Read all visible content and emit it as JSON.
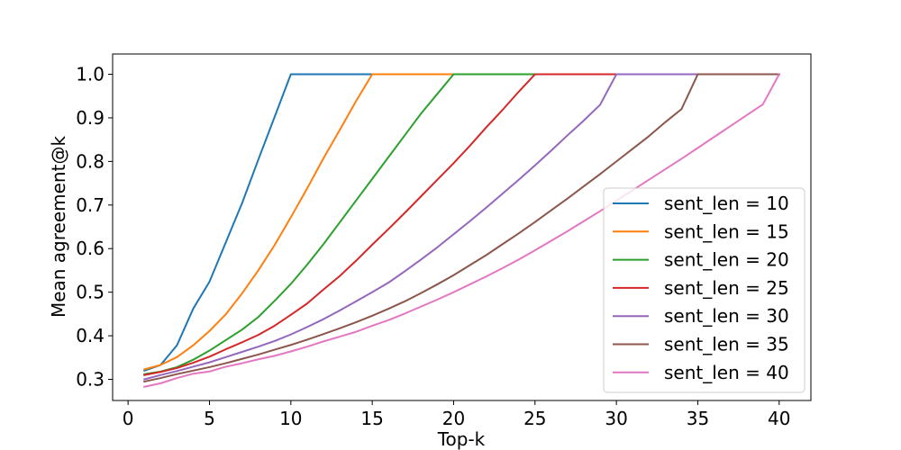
{
  "chart_data": {
    "type": "line",
    "title": "",
    "xlabel": "Top-k",
    "ylabel": "Mean agreement@k",
    "xlim": [
      -0.95,
      41.95
    ],
    "ylim": [
      0.2515,
      1.0465
    ],
    "xticks": [
      0,
      5,
      10,
      15,
      20,
      25,
      30,
      35,
      40
    ],
    "yticks": [
      0.3,
      0.4,
      0.5,
      0.6,
      0.7,
      0.8,
      0.9,
      1.0
    ],
    "xtick_labels": [
      "0",
      "5",
      "10",
      "15",
      "20",
      "25",
      "30",
      "35",
      "40"
    ],
    "ytick_labels": [
      "0.3",
      "0.4",
      "0.5",
      "0.6",
      "0.7",
      "0.8",
      "0.9",
      "1.0"
    ],
    "grid": false,
    "legend_position": "lower-right",
    "series": [
      {
        "name": "sent_len = 10",
        "color": "#1f77b4",
        "x": [
          1,
          2,
          3,
          4,
          5,
          6,
          7,
          8,
          9,
          10,
          11,
          12,
          13,
          14,
          15,
          16,
          17,
          18,
          19,
          20,
          21,
          22,
          23,
          24,
          25,
          26,
          27,
          28,
          29,
          30,
          31,
          32,
          33,
          34,
          35,
          36,
          37,
          38,
          39,
          40
        ],
        "y": [
          0.32,
          0.333,
          0.378,
          0.462,
          0.524,
          0.614,
          0.704,
          0.804,
          0.902,
          1.0,
          1.0,
          1.0,
          1.0,
          1.0,
          1.0,
          1.0,
          1.0,
          1.0,
          1.0,
          1.0,
          1.0,
          1.0,
          1.0,
          1.0,
          1.0,
          1.0,
          1.0,
          1.0,
          1.0,
          1.0,
          1.0,
          1.0,
          1.0,
          1.0,
          1.0,
          1.0,
          1.0,
          1.0,
          1.0,
          1.0
        ]
      },
      {
        "name": "sent_len = 15",
        "color": "#ff7f0e",
        "x": [
          1,
          2,
          3,
          4,
          5,
          6,
          7,
          8,
          9,
          10,
          11,
          12,
          13,
          14,
          15,
          16,
          17,
          18,
          19,
          20,
          21,
          22,
          23,
          24,
          25,
          26,
          27,
          28,
          29,
          30,
          31,
          32,
          33,
          34,
          35,
          36,
          37,
          38,
          39,
          40
        ],
        "y": [
          0.323,
          0.333,
          0.351,
          0.378,
          0.411,
          0.449,
          0.497,
          0.55,
          0.608,
          0.672,
          0.738,
          0.807,
          0.872,
          0.938,
          1.0,
          1.0,
          1.0,
          1.0,
          1.0,
          1.0,
          1.0,
          1.0,
          1.0,
          1.0,
          1.0,
          1.0,
          1.0,
          1.0,
          1.0,
          1.0,
          1.0,
          1.0,
          1.0,
          1.0,
          1.0,
          1.0,
          1.0,
          1.0,
          1.0,
          1.0
        ]
      },
      {
        "name": "sent_len = 20",
        "color": "#2ca02c",
        "x": [
          1,
          2,
          3,
          4,
          5,
          6,
          7,
          8,
          9,
          10,
          11,
          12,
          13,
          14,
          15,
          16,
          17,
          18,
          19,
          20,
          21,
          22,
          23,
          24,
          25,
          26,
          27,
          28,
          29,
          30,
          31,
          32,
          33,
          34,
          35,
          36,
          37,
          38,
          39,
          40
        ],
        "y": [
          0.312,
          0.318,
          0.328,
          0.345,
          0.366,
          0.39,
          0.414,
          0.443,
          0.48,
          0.519,
          0.563,
          0.61,
          0.66,
          0.71,
          0.76,
          0.81,
          0.86,
          0.91,
          0.955,
          1.0,
          1.0,
          1.0,
          1.0,
          1.0,
          1.0,
          1.0,
          1.0,
          1.0,
          1.0,
          1.0,
          1.0,
          1.0,
          1.0,
          1.0,
          1.0,
          1.0,
          1.0,
          1.0,
          1.0,
          1.0
        ]
      },
      {
        "name": "sent_len = 25",
        "color": "#d62728",
        "x": [
          1,
          2,
          3,
          4,
          5,
          6,
          7,
          8,
          9,
          10,
          11,
          12,
          13,
          14,
          15,
          16,
          17,
          18,
          19,
          20,
          21,
          22,
          23,
          24,
          25,
          26,
          27,
          28,
          29,
          30,
          31,
          32,
          33,
          34,
          35,
          36,
          37,
          38,
          39,
          40
        ],
        "y": [
          0.31,
          0.317,
          0.326,
          0.338,
          0.352,
          0.369,
          0.385,
          0.402,
          0.423,
          0.448,
          0.474,
          0.506,
          0.537,
          0.572,
          0.609,
          0.645,
          0.682,
          0.72,
          0.758,
          0.796,
          0.836,
          0.878,
          0.918,
          0.96,
          1.0,
          1.0,
          1.0,
          1.0,
          1.0,
          1.0,
          1.0,
          1.0,
          1.0,
          1.0,
          1.0,
          1.0,
          1.0,
          1.0,
          1.0,
          1.0
        ]
      },
      {
        "name": "sent_len = 30",
        "color": "#9467bd",
        "x": [
          1,
          2,
          3,
          4,
          5,
          6,
          7,
          8,
          9,
          10,
          11,
          12,
          13,
          14,
          15,
          16,
          17,
          18,
          19,
          20,
          21,
          22,
          23,
          24,
          25,
          26,
          27,
          28,
          29,
          30,
          31,
          32,
          33,
          34,
          35,
          36,
          37,
          38,
          39,
          40
        ],
        "y": [
          0.3,
          0.31,
          0.319,
          0.329,
          0.339,
          0.351,
          0.363,
          0.375,
          0.388,
          0.403,
          0.42,
          0.438,
          0.458,
          0.479,
          0.5,
          0.522,
          0.548,
          0.575,
          0.603,
          0.633,
          0.663,
          0.694,
          0.726,
          0.758,
          0.791,
          0.825,
          0.86,
          0.894,
          0.93,
          1.0,
          1.0,
          1.0,
          1.0,
          1.0,
          1.0,
          1.0,
          1.0,
          1.0,
          1.0,
          1.0
        ]
      },
      {
        "name": "sent_len = 35",
        "color": "#8c564b",
        "x": [
          1,
          2,
          3,
          4,
          5,
          6,
          7,
          8,
          9,
          10,
          11,
          12,
          13,
          14,
          15,
          16,
          17,
          18,
          19,
          20,
          21,
          22,
          23,
          24,
          25,
          26,
          27,
          28,
          29,
          30,
          31,
          32,
          33,
          34,
          35,
          36,
          37,
          38,
          39,
          40
        ],
        "y": [
          0.295,
          0.303,
          0.312,
          0.32,
          0.328,
          0.337,
          0.347,
          0.357,
          0.368,
          0.379,
          0.391,
          0.404,
          0.417,
          0.431,
          0.446,
          0.462,
          0.479,
          0.498,
          0.518,
          0.539,
          0.562,
          0.585,
          0.61,
          0.635,
          0.661,
          0.688,
          0.715,
          0.743,
          0.771,
          0.8,
          0.829,
          0.858,
          0.89,
          0.92,
          1.0,
          1.0,
          1.0,
          1.0,
          1.0,
          1.0
        ]
      },
      {
        "name": "sent_len = 40",
        "color": "#e377c2",
        "x": [
          1,
          2,
          3,
          4,
          5,
          6,
          7,
          8,
          9,
          10,
          11,
          12,
          13,
          14,
          15,
          16,
          17,
          18,
          19,
          20,
          21,
          22,
          23,
          24,
          25,
          26,
          27,
          28,
          29,
          30,
          31,
          32,
          33,
          34,
          35,
          36,
          37,
          38,
          39,
          40
        ],
        "y": [
          0.283,
          0.291,
          0.303,
          0.313,
          0.318,
          0.329,
          0.337,
          0.346,
          0.354,
          0.364,
          0.375,
          0.387,
          0.398,
          0.409,
          0.423,
          0.436,
          0.451,
          0.467,
          0.483,
          0.5,
          0.518,
          0.536,
          0.555,
          0.575,
          0.596,
          0.618,
          0.64,
          0.663,
          0.686,
          0.71,
          0.734,
          0.758,
          0.782,
          0.806,
          0.831,
          0.856,
          0.881,
          0.906,
          0.931,
          1.0
        ]
      }
    ]
  }
}
